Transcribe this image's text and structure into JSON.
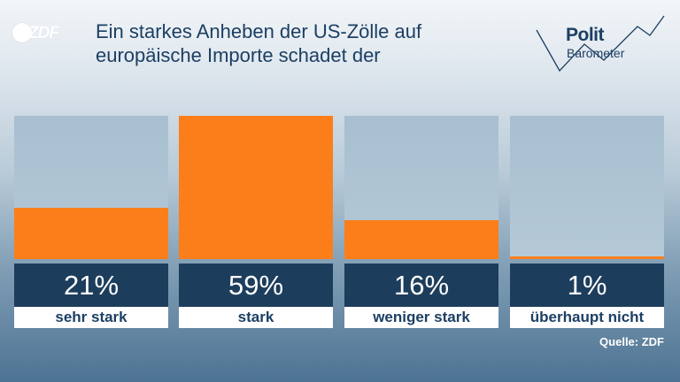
{
  "header": {
    "logo_text": "ZDF",
    "title_line1": "Ein starkes Anheben der US-Zölle auf",
    "title_line2": "europäische Importe schadet der",
    "brand_line1": "Polit",
    "brand_line2": "Barometer"
  },
  "chart_data": {
    "type": "bar",
    "categories": [
      "sehr stark",
      "stark",
      "weniger stark",
      "überhaupt nicht"
    ],
    "values": [
      21,
      59,
      16,
      1
    ],
    "value_labels": [
      "21%",
      "59%",
      "16%",
      "1%"
    ],
    "unit": "%",
    "ylim": [
      0,
      59
    ],
    "colors": {
      "bar": "#fb7e1a",
      "track": "#a7bfd0",
      "value_box": "#1d3d5c"
    }
  },
  "footer": {
    "source": "Quelle: ZDF"
  }
}
